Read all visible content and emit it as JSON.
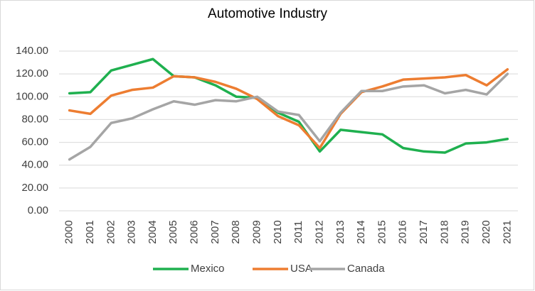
{
  "chart_data": {
    "type": "line",
    "title": "Automotive Industry",
    "categories": [
      "2000",
      "2001",
      "2002",
      "2003",
      "2004",
      "2005",
      "2006",
      "2007",
      "2008",
      "2009",
      "2010",
      "2011",
      "2012",
      "2013",
      "2014",
      "2015",
      "2016",
      "2017",
      "2018",
      "2019",
      "2020",
      "2021"
    ],
    "series": [
      {
        "name": "Mexico",
        "color": "#1fb04f",
        "values": [
          103,
          104,
          123,
          128,
          133,
          118,
          117,
          110,
          100,
          99,
          86,
          78,
          52,
          71,
          69,
          67,
          55,
          52,
          51,
          59,
          60,
          63
        ]
      },
      {
        "name": "USA",
        "color": "#ed7d31",
        "values": [
          88,
          85,
          101,
          106,
          108,
          118,
          117,
          113,
          107,
          98,
          83,
          75,
          55,
          85,
          104,
          109,
          115,
          116,
          117,
          119,
          110,
          124
        ]
      },
      {
        "name": "Canada",
        "color": "#a5a5a5",
        "values": [
          45,
          56,
          77,
          81,
          89,
          96,
          93,
          97,
          96,
          100,
          87,
          84,
          61,
          86,
          105,
          105,
          109,
          110,
          103,
          106,
          102,
          120
        ]
      }
    ],
    "ylim": [
      0,
      140
    ],
    "yticks": [
      {
        "value": 0,
        "label": "0.00"
      },
      {
        "value": 20,
        "label": "20.00"
      },
      {
        "value": 40,
        "label": "40.00"
      },
      {
        "value": 60,
        "label": "60.00"
      },
      {
        "value": 80,
        "label": "80.00"
      },
      {
        "value": 100,
        "label": "100.00"
      },
      {
        "value": 120,
        "label": "120.00"
      },
      {
        "value": 140,
        "label": "140.00"
      }
    ],
    "grid": true,
    "legend": "bottom"
  }
}
